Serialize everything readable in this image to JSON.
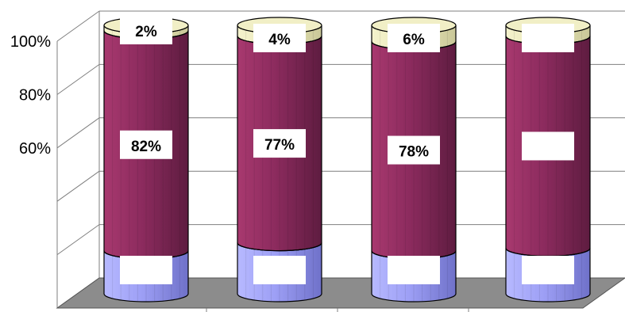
{
  "chart_data": {
    "type": "bar",
    "stacked": true,
    "style": "3d-cylinder",
    "grid": true,
    "ylim": [
      0,
      100
    ],
    "y_tick_labels": [
      "",
      "",
      "",
      "60%",
      "80%",
      "100%"
    ],
    "series": [
      {
        "values": [
          16,
          19,
          16,
          17
        ],
        "labels": [
          "",
          "",
          "",
          ""
        ]
      },
      {
        "values": [
          82,
          77,
          78,
          79
        ],
        "labels": [
          "82%",
          "77%",
          "78%",
          ""
        ]
      },
      {
        "values": [
          2,
          4,
          6,
          4
        ],
        "labels": [
          "2%",
          "4%",
          "6%",
          ""
        ]
      }
    ],
    "colors": {
      "bottom": "#9d9ff5",
      "middle": "#8c2b5e",
      "top": "#eae8b8",
      "floor": "#8c8c8c"
    }
  }
}
